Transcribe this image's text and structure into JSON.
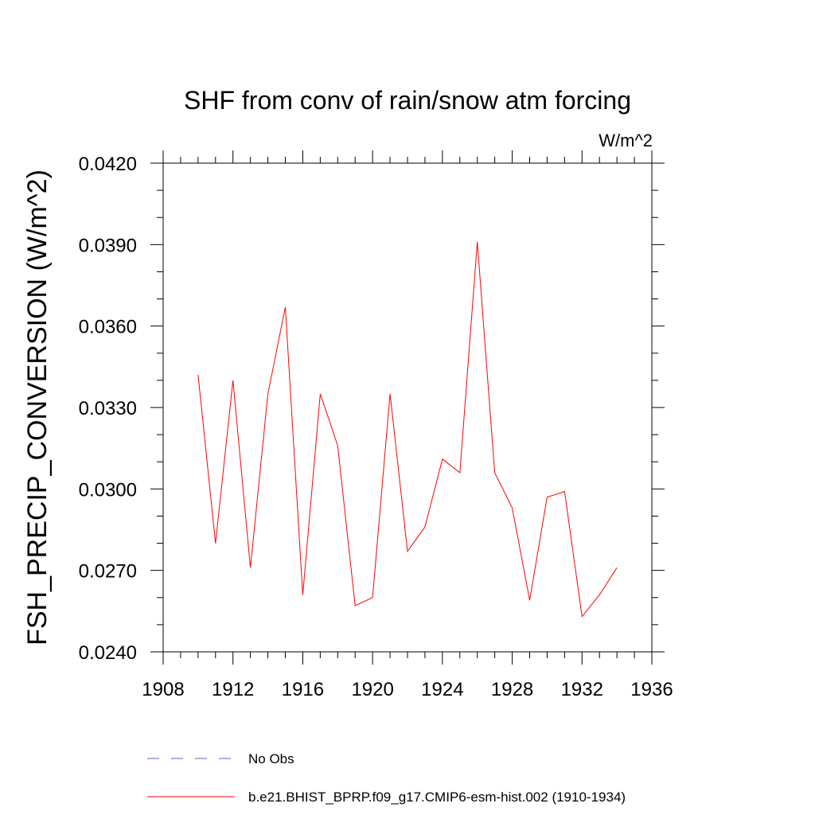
{
  "chart_data": {
    "type": "line",
    "title": "SHF from conv of rain/snow atm forcing",
    "units_label": "W/m^2",
    "xlabel": "",
    "ylabel": "FSH_PRECIP_CONVERSION  (W/m^2)",
    "xlim": [
      1908,
      1936
    ],
    "ylim": [
      0.024,
      0.042
    ],
    "x_ticks": [
      1908,
      1912,
      1916,
      1920,
      1924,
      1928,
      1932,
      1936
    ],
    "x_tick_labels": [
      "1908",
      "1912",
      "1916",
      "1920",
      "1924",
      "1928",
      "1932",
      "1936"
    ],
    "y_ticks": [
      0.024,
      0.027,
      0.03,
      0.033,
      0.036,
      0.039,
      0.042
    ],
    "y_tick_labels": [
      "0.0240",
      "0.0270",
      "0.0300",
      "0.0330",
      "0.0360",
      "0.0390",
      "0.0420"
    ],
    "grid": false,
    "legend_position": "bottom",
    "legend": [
      {
        "label": "No Obs",
        "color": "#6a5acd",
        "style": "dashed"
      },
      {
        "label": "b.e21.BHIST_BPRP.f09_g17.CMIP6-esm-hist.002 (1910-1934)",
        "color": "#ff0000",
        "style": "solid"
      }
    ],
    "series": [
      {
        "name": "b.e21.BHIST_BPRP.f09_g17.CMIP6-esm-hist.002 (1910-1934)",
        "color": "#ff0000",
        "x": [
          1910,
          1911,
          1912,
          1913,
          1914,
          1915,
          1916,
          1917,
          1918,
          1919,
          1920,
          1921,
          1922,
          1923,
          1924,
          1925,
          1926,
          1927,
          1928,
          1929,
          1930,
          1931,
          1932,
          1933,
          1934
        ],
        "y": [
          0.0342,
          0.028,
          0.034,
          0.0271,
          0.0335,
          0.0367,
          0.0261,
          0.0335,
          0.0316,
          0.0257,
          0.026,
          0.0335,
          0.0277,
          0.0286,
          0.0311,
          0.0306,
          0.0391,
          0.0306,
          0.0293,
          0.0259,
          0.0297,
          0.0299,
          0.0253,
          0.0261,
          0.0271
        ]
      }
    ]
  }
}
